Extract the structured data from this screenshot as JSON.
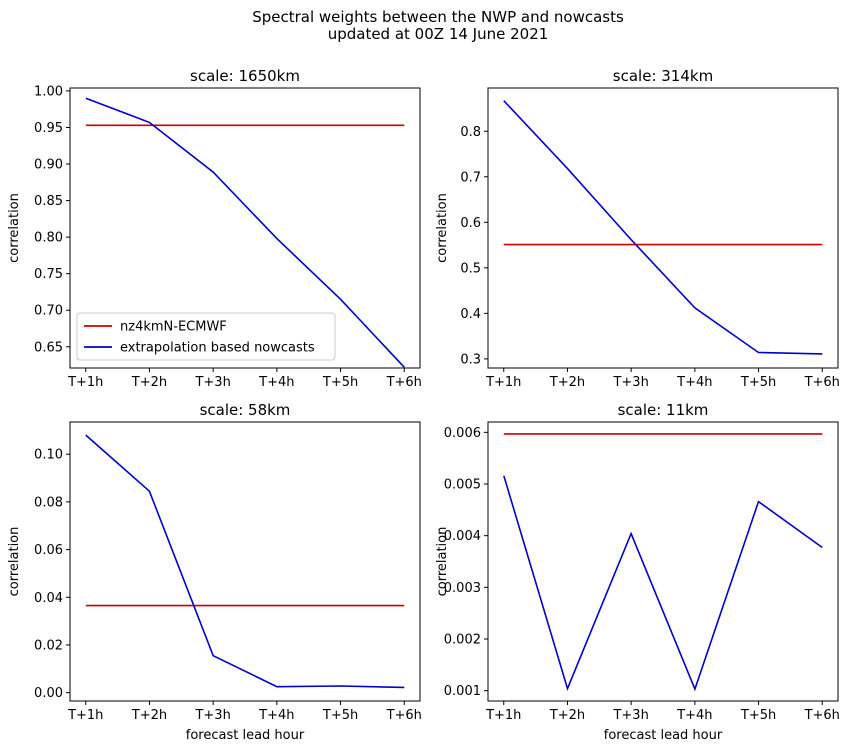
{
  "figure": {
    "title_line1": "Spectral weights between the NWP and nowcasts",
    "title_line2": "updated at 00Z 14 June 2021"
  },
  "colors": {
    "nwp": "#cc0000",
    "nowcast": "#0000cc"
  },
  "legend": {
    "items": [
      "nz4kmN-ECMWF",
      "extrapolation based nowcasts"
    ],
    "placement": "lower-left of first panel"
  },
  "chart_data": [
    {
      "type": "line",
      "title": "scale: 1650km",
      "xlabel": "",
      "ylabel": "correlation",
      "categories": [
        "T+1h",
        "T+2h",
        "T+3h",
        "T+4h",
        "T+5h",
        "T+6h"
      ],
      "ylim": [
        0.621,
        1.004
      ],
      "yticks": [
        "0.65",
        "0.70",
        "0.75",
        "0.80",
        "0.85",
        "0.90",
        "0.95",
        "1.00"
      ],
      "series": [
        {
          "name": "nz4kmN-ECMWF",
          "values": [
            0.953,
            0.953,
            0.953,
            0.953,
            0.953,
            0.953
          ]
        },
        {
          "name": "extrapolation based nowcasts",
          "values": [
            0.99,
            0.957,
            0.889,
            0.798,
            0.715,
            0.622
          ]
        }
      ]
    },
    {
      "type": "line",
      "title": "scale: 314km",
      "xlabel": "",
      "ylabel": "correlation",
      "categories": [
        "T+1h",
        "T+2h",
        "T+3h",
        "T+4h",
        "T+5h",
        "T+6h"
      ],
      "ylim": [
        0.28,
        0.895
      ],
      "yticks": [
        "0.3",
        "0.4",
        "0.5",
        "0.6",
        "0.7",
        "0.8"
      ],
      "series": [
        {
          "name": "nz4kmN-ECMWF",
          "values": [
            0.551,
            0.551,
            0.551,
            0.551,
            0.551,
            0.551
          ]
        },
        {
          "name": "extrapolation based nowcasts",
          "values": [
            0.867,
            0.718,
            0.562,
            0.412,
            0.314,
            0.311
          ]
        }
      ]
    },
    {
      "type": "line",
      "title": "scale: 58km",
      "xlabel": "forecast lead hour",
      "ylabel": "correlation",
      "categories": [
        "T+1h",
        "T+2h",
        "T+3h",
        "T+4h",
        "T+5h",
        "T+6h"
      ],
      "ylim": [
        -0.0035,
        0.1135
      ],
      "yticks": [
        "0.00",
        "0.02",
        "0.04",
        "0.06",
        "0.08",
        "0.10"
      ],
      "series": [
        {
          "name": "nz4kmN-ECMWF",
          "values": [
            0.0365,
            0.0365,
            0.0365,
            0.0365,
            0.0365,
            0.0365
          ]
        },
        {
          "name": "extrapolation based nowcasts",
          "values": [
            0.108,
            0.0845,
            0.0155,
            0.0025,
            0.0028,
            0.0022
          ]
        }
      ]
    },
    {
      "type": "line",
      "title": "scale: 11km",
      "xlabel": "forecast lead hour",
      "ylabel": "correlation",
      "categories": [
        "T+1h",
        "T+2h",
        "T+3h",
        "T+4h",
        "T+5h",
        "T+6h"
      ],
      "ylim": [
        0.0008,
        0.0062
      ],
      "yticks": [
        "0.001",
        "0.002",
        "0.003",
        "0.004",
        "0.005",
        "0.006"
      ],
      "series": [
        {
          "name": "nz4kmN-ECMWF",
          "values": [
            0.00597,
            0.00597,
            0.00597,
            0.00597,
            0.00597,
            0.00597
          ]
        },
        {
          "name": "extrapolation based nowcasts",
          "values": [
            0.00516,
            0.00104,
            0.00404,
            0.00103,
            0.00466,
            0.00377
          ]
        }
      ]
    }
  ]
}
